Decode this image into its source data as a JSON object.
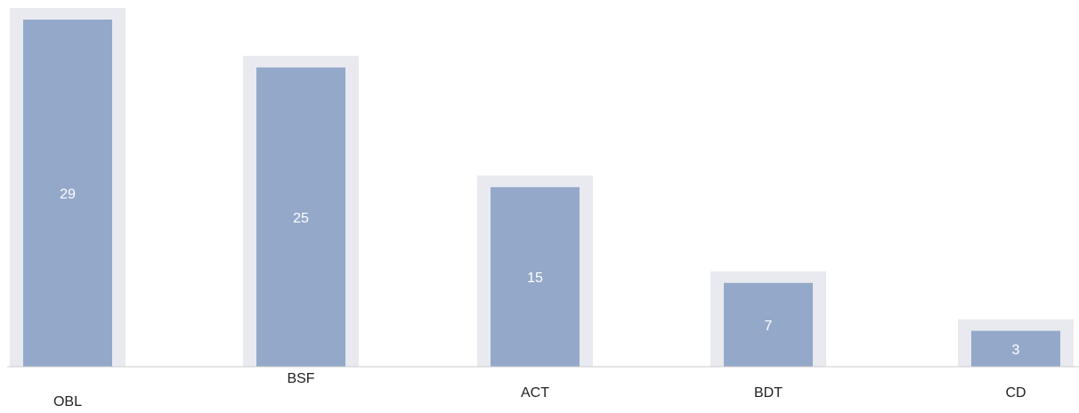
{
  "chart_data": {
    "type": "bar",
    "title": "",
    "xlabel": "",
    "ylabel": "",
    "categories": [
      "OBL",
      "BSF",
      "ACT",
      "BDT",
      "CD"
    ],
    "values": [
      29,
      25,
      15,
      7,
      3
    ],
    "ylim": [
      0,
      29
    ],
    "grid": false,
    "colors": {
      "bar": "#94a9c9",
      "bar_shadow": "#e9eaf0",
      "axis": "#cccccc",
      "value_label": "#ffffff",
      "tick_label": "#222222"
    }
  }
}
